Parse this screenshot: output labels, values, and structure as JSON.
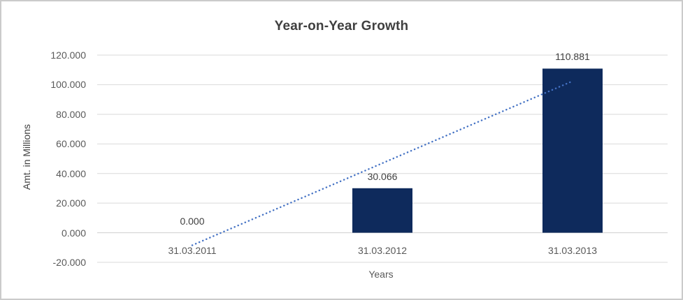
{
  "chart_data": {
    "type": "bar",
    "title": "Year-on-Year Growth",
    "xlabel": "Years",
    "ylabel": "Amt. in Millions",
    "categories": [
      "31.03.2011",
      "31.03.2012",
      "31.03.2013"
    ],
    "values": [
      0,
      30.066,
      110.881
    ],
    "data_labels": [
      "0.000",
      "30.066",
      "110.881"
    ],
    "y_ticks": [
      120,
      100,
      80,
      60,
      40,
      20,
      0,
      -20
    ],
    "y_tick_labels": [
      "120.000",
      "100.000",
      "80.000",
      "60.000",
      "40.000",
      "20.000",
      "0.000",
      "-20.000"
    ],
    "ylim": [
      -20,
      120
    ],
    "grid": true,
    "legend": "none",
    "trendline": {
      "type": "linear",
      "style": "dotted",
      "fit_values_at_categories": [
        -8.462,
        46.982,
        102.427
      ]
    },
    "colors": {
      "bar": "#0e2a5c",
      "trendline": "#4472c4",
      "gridline": "#d9d9d9",
      "axis_line": "#cfcfcf",
      "tick_text": "#595959",
      "data_label_text": "#404040",
      "title_text": "#3f3f3f",
      "chart_border": "#cbcbcb",
      "background": "#ffffff"
    }
  }
}
